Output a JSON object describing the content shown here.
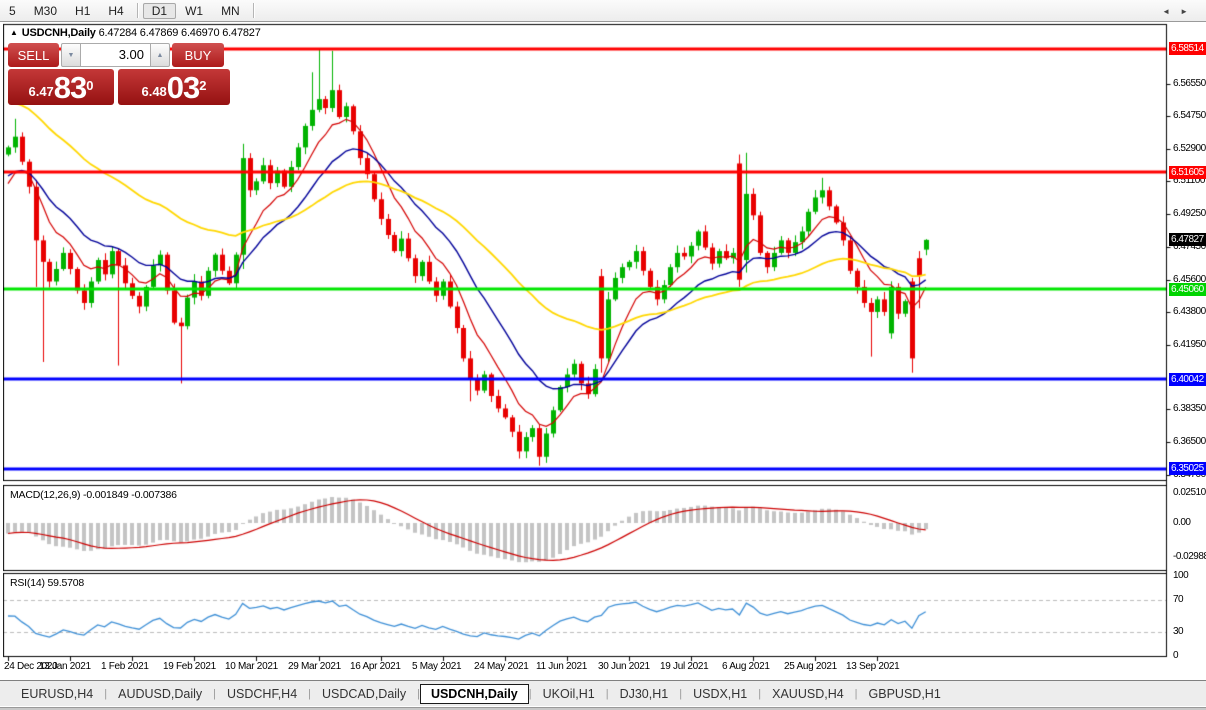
{
  "toolbar": {
    "items": [
      {
        "label": "5"
      },
      {
        "label": "M30"
      },
      {
        "label": "H1"
      },
      {
        "label": "H4"
      },
      {
        "sep": true
      },
      {
        "label": "D1",
        "active": true
      },
      {
        "label": "W1"
      },
      {
        "label": "MN"
      },
      {
        "sep": true
      }
    ]
  },
  "chart": {
    "collapse_glyph": "▲",
    "title_symbol": "USDCNH,Daily",
    "title_ohlc": "6.47284 6.47869 6.46970 6.47827"
  },
  "trade_panel": {
    "sell_label": "SELL",
    "buy_label": "BUY",
    "volume": "3.00",
    "spin_down_glyph": "▼",
    "spin_up_glyph": "▲",
    "sell_price_small": "6.47",
    "sell_price_big": "83",
    "sell_price_sup": "0",
    "buy_price_small": "6.48",
    "buy_price_big": "03",
    "buy_price_sup": "2"
  },
  "price_axis": {
    "ticks": [
      {
        "label": "6.56550",
        "price": 6.5655
      },
      {
        "label": "6.54750",
        "price": 6.5475
      },
      {
        "label": "6.52900",
        "price": 6.529
      },
      {
        "label": "6.51100",
        "price": 6.511
      },
      {
        "label": "6.49250",
        "price": 6.4925
      },
      {
        "label": "6.47450",
        "price": 6.4745
      },
      {
        "label": "6.45600",
        "price": 6.456
      },
      {
        "label": "6.43800",
        "price": 6.438
      },
      {
        "label": "6.41950",
        "price": 6.4195
      },
      {
        "label": "6.38350",
        "price": 6.3835
      },
      {
        "label": "6.36500",
        "price": 6.365
      },
      {
        "label": "6.34700",
        "price": 6.347
      }
    ],
    "badges": [
      {
        "label": "6.58514",
        "price": 6.58514,
        "bg": "#ff0000"
      },
      {
        "label": "6.51605",
        "price": 6.51605,
        "bg": "#ff0000"
      },
      {
        "label": "6.47827",
        "price": 6.47827,
        "bg": "#000000"
      },
      {
        "label": "6.45060",
        "price": 6.4506,
        "bg": "#00d400"
      },
      {
        "label": "6.40042",
        "price": 6.40042,
        "bg": "#0000ff"
      },
      {
        "label": "6.35025",
        "price": 6.35025,
        "bg": "#0000ff"
      }
    ]
  },
  "chart_data": {
    "type": "candlestick",
    "symbol": "USDCNH",
    "period": "Daily",
    "ylim": [
      6.344,
      6.599
    ],
    "x_labels": [
      "24 Dec 2020",
      "13 Jan 2021",
      "1 Feb 2021",
      "19 Feb 2021",
      "10 Mar 2021",
      "29 Mar 2021",
      "16 Apr 2021",
      "5 May 2021",
      "24 May 2021",
      "11 Jun 2021",
      "30 Jun 2021",
      "19 Jul 2021",
      "6 Aug 2021",
      "25 Aug 2021",
      "13 Sep 2021"
    ],
    "x_label_every_bars": 9,
    "colors": {
      "bull": "#00b300",
      "bear": "#e80000"
    },
    "closes": [
      6.53,
      6.536,
      6.522,
      6.508,
      6.478,
      6.466,
      6.455,
      6.462,
      6.471,
      6.462,
      6.45,
      6.443,
      6.455,
      6.467,
      6.459,
      6.472,
      6.464,
      6.454,
      6.447,
      6.441,
      6.452,
      6.464,
      6.47,
      6.45,
      6.432,
      6.43,
      6.446,
      6.455,
      6.447,
      6.461,
      6.47,
      6.461,
      6.454,
      6.47,
      6.524,
      6.506,
      6.511,
      6.52,
      6.51,
      6.517,
      6.508,
      6.519,
      6.53,
      6.542,
      6.551,
      6.557,
      6.552,
      6.562,
      6.547,
      6.553,
      6.539,
      6.524,
      6.515,
      6.501,
      6.49,
      6.481,
      6.472,
      6.479,
      6.468,
      6.458,
      6.466,
      6.455,
      6.447,
      6.455,
      6.441,
      6.429,
      6.412,
      6.4,
      6.394,
      6.403,
      6.391,
      6.384,
      6.379,
      6.371,
      6.36,
      6.368,
      6.373,
      6.357,
      6.37,
      6.383,
      6.396,
      6.403,
      6.409,
      6.398,
      6.392,
      6.406,
      6.412,
      6.445,
      6.457,
      6.463,
      6.466,
      6.472,
      6.461,
      6.452,
      6.445,
      6.453,
      6.463,
      6.471,
      6.469,
      6.475,
      6.483,
      6.474,
      6.465,
      6.472,
      6.468,
      6.471,
      6.456,
      6.504,
      6.492,
      6.471,
      6.463,
      6.471,
      6.478,
      6.471,
      6.477,
      6.483,
      6.494,
      6.502,
      6.506,
      6.497,
      6.488,
      6.478,
      6.461,
      6.452,
      6.443,
      6.438,
      6.445,
      6.438,
      6.452,
      6.437,
      6.444,
      6.412,
      6.458,
      6.47827
    ],
    "first_open": 6.526,
    "ohlc_overrides": {
      "1": [
        null,
        6.546,
        null,
        null
      ],
      "4": [
        null,
        null,
        6.452,
        null
      ],
      "5": [
        null,
        null,
        6.41,
        null
      ],
      "16": [
        null,
        null,
        6.408,
        null
      ],
      "25": [
        null,
        null,
        6.398,
        null
      ],
      "34": [
        6.47,
        6.532,
        6.462,
        null
      ],
      "44": [
        null,
        6.572,
        null,
        null
      ],
      "45": [
        null,
        6.585,
        null,
        null
      ],
      "47": [
        null,
        6.584,
        null,
        null
      ],
      "67": [
        null,
        null,
        6.388,
        null
      ],
      "74": [
        null,
        null,
        6.356,
        null
      ],
      "77": [
        6.373,
        6.375,
        6.352,
        null
      ],
      "86": [
        6.458,
        6.462,
        6.404,
        null
      ],
      "106": [
        6.521,
        6.526,
        6.452,
        null
      ],
      "107": [
        6.467,
        6.527,
        6.46,
        null
      ],
      "118": [
        null,
        6.513,
        null,
        null
      ],
      "125": [
        null,
        null,
        6.413,
        null
      ],
      "128": [
        6.426,
        null,
        6.423,
        null
      ],
      "131": [
        6.455,
        6.457,
        6.404,
        null
      ],
      "132": [
        6.468,
        6.472,
        6.44,
        null
      ],
      "133": [
        6.47284,
        6.47869,
        6.4697,
        6.47827
      ]
    },
    "levels": [
      {
        "price": 6.58514,
        "color": "#ff0000",
        "width": 3
      },
      {
        "price": 6.51605,
        "color": "#ff0000",
        "width": 3
      },
      {
        "price": 6.4506,
        "color": "#00e600",
        "width": 3
      },
      {
        "price": 6.40042,
        "color": "#0000ff",
        "width": 3
      },
      {
        "price": 6.35025,
        "color": "#0000ff",
        "width": 3
      }
    ],
    "moving_averages": [
      {
        "period": 8,
        "seed": 6.504,
        "color": "#d40000",
        "width": 1.2
      },
      {
        "period": 17,
        "seed": 6.512,
        "color": "#000099",
        "width": 1.4
      },
      {
        "period": 44,
        "seed": 6.557,
        "color": "#ffd700",
        "width": 1.8
      }
    ],
    "macd": {
      "label": "MACD(12,26,9) -0.001849 -0.007386",
      "fast": 12,
      "slow": 26,
      "signal": 9,
      "hist_color": "#c4c4c4",
      "signal_color": "#cc0000",
      "axis_labels": [
        {
          "label": "0.025108",
          "value": 0.0251
        },
        {
          "label": "0.00",
          "value": 0
        },
        {
          "label": "-0.02988",
          "value": -0.029
        }
      ]
    },
    "rsi": {
      "label": "RSI(14) 59.5708",
      "period": 14,
      "line_color": "#3d8fd6",
      "dashed_levels": [
        70,
        30
      ],
      "axis_labels": [
        {
          "label": "100",
          "value": 100
        },
        {
          "label": "70",
          "value": 70
        },
        {
          "label": "30",
          "value": 30
        },
        {
          "label": "0",
          "value": 0
        }
      ]
    }
  },
  "tab_bar": {
    "tabs": [
      {
        "label": "EURUSD,H4"
      },
      {
        "label": "AUDUSD,Daily"
      },
      {
        "label": "USDCHF,H4"
      },
      {
        "label": "USDCAD,Daily"
      },
      {
        "label": "USDCNH,Daily",
        "active": true
      },
      {
        "label": "UKOil,H1"
      },
      {
        "label": "DJ30,H1"
      },
      {
        "label": "USDX,H1"
      },
      {
        "label": "XAUUSD,H4"
      },
      {
        "label": "GBPUSD,H1"
      }
    ],
    "scroll_left": "◄",
    "scroll_right": "►"
  }
}
